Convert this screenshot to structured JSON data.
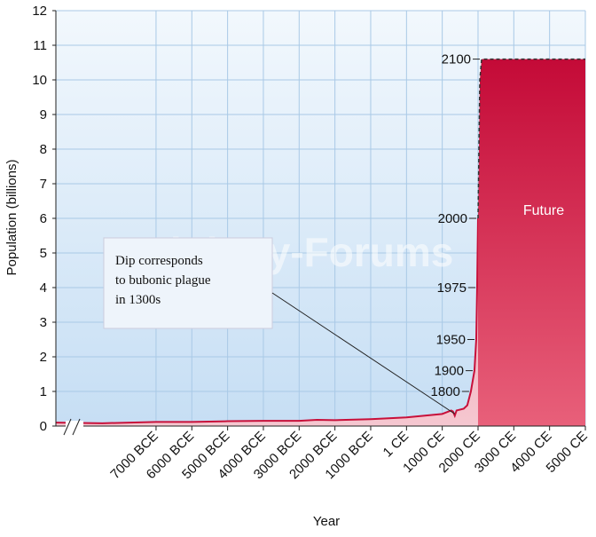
{
  "chart_data": {
    "type": "area",
    "y_label": "Population (billions)",
    "x_label": "Year",
    "watermark": "Biology-Forums",
    "annotation": [
      "Dip corresponds",
      "to bubonic plague",
      "in 1300s"
    ],
    "xlim": [
      -9800,
      5000
    ],
    "xticks": [
      {
        "value": -7000,
        "label": "7000 BCE"
      },
      {
        "value": -6000,
        "label": "6000 BCE"
      },
      {
        "value": -5000,
        "label": "5000 BCE"
      },
      {
        "value": -4000,
        "label": "4000 BCE"
      },
      {
        "value": -3000,
        "label": "3000 BCE"
      },
      {
        "value": -2000,
        "label": "2000 BCE"
      },
      {
        "value": -1000,
        "label": "1000 BCE"
      },
      {
        "value": 1,
        "label": "1 CE"
      },
      {
        "value": 1000,
        "label": "1000 CE"
      },
      {
        "value": 2000,
        "label": "2000 CE"
      },
      {
        "value": 3000,
        "label": "3000 CE"
      },
      {
        "value": 4000,
        "label": "4000 CE"
      },
      {
        "value": 5000,
        "label": "5000 CE"
      }
    ],
    "ylim": [
      0,
      12
    ],
    "yticks": [
      0,
      1,
      2,
      3,
      4,
      5,
      6,
      7,
      8,
      9,
      10,
      11,
      12
    ],
    "grid": true,
    "series": [
      {
        "color": "#c8103a",
        "dashed": false,
        "x": [
          -9800,
          -8500,
          -7000,
          -6000,
          -5000,
          -4000,
          -3000,
          -2500,
          -2000,
          -1000,
          0,
          1000,
          1250,
          1300,
          1350,
          1400,
          1600,
          1700,
          1800,
          1900,
          1950,
          1975,
          2000
        ],
        "values": [
          0.1,
          0.08,
          0.12,
          0.12,
          0.14,
          0.15,
          0.15,
          0.18,
          0.17,
          0.2,
          0.25,
          0.35,
          0.45,
          0.42,
          0.3,
          0.45,
          0.5,
          0.6,
          1.0,
          1.6,
          2.5,
          4.0,
          6.0
        ],
        "labels": [
          null,
          null,
          null,
          null,
          null,
          null,
          null,
          null,
          null,
          null,
          null,
          null,
          null,
          null,
          null,
          null,
          null,
          null,
          "1800",
          "1900",
          "1950",
          "1975",
          "2000"
        ]
      },
      {
        "name": "Future",
        "color": "#c8103a",
        "dashed": true,
        "x": [
          2000,
          2050,
          2100,
          5000
        ],
        "values": [
          6.0,
          10.0,
          10.6,
          10.6
        ],
        "labels": [
          null,
          null,
          "2100",
          null
        ]
      }
    ]
  }
}
